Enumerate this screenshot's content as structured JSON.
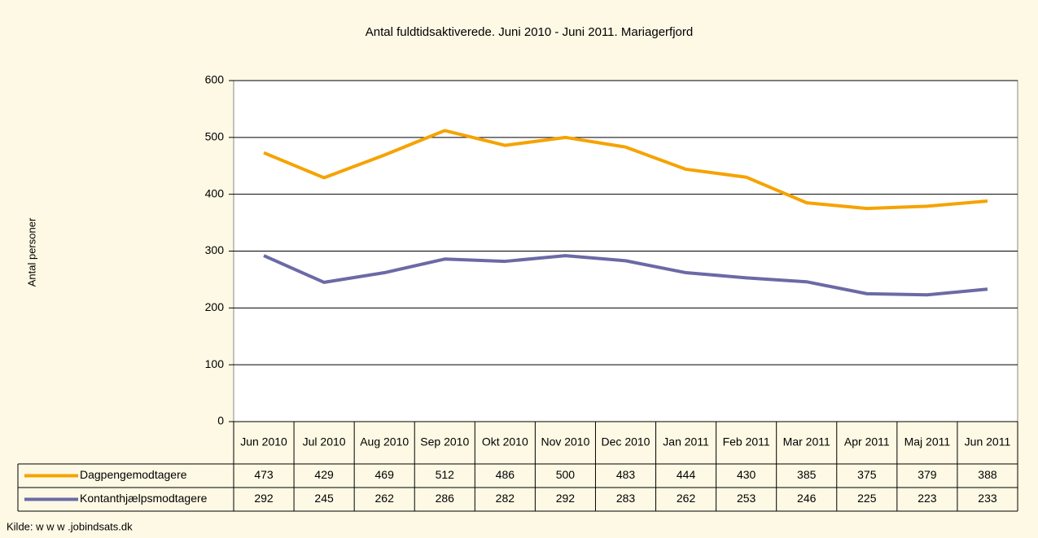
{
  "chart_data": {
    "type": "line",
    "title": "Antal fuldtidsaktiverede. Juni 2010 - Juni 2011. Mariagerfjord",
    "y_label": "Antal personer",
    "source": "Kilde: w w w .jobindsats.dk",
    "categories": [
      "Jun 2010",
      "Jul 2010",
      "Aug 2010",
      "Sep 2010",
      "Okt 2010",
      "Nov 2010",
      "Dec 2010",
      "Jan 2011",
      "Feb 2011",
      "Mar 2011",
      "Apr 2011",
      "Maj 2011",
      "Jun 2011"
    ],
    "series": [
      {
        "name": "Dagpengemodtagere",
        "color": "#f5a300",
        "values": [
          473,
          429,
          469,
          512,
          486,
          500,
          483,
          444,
          430,
          385,
          375,
          379,
          388
        ]
      },
      {
        "name": "Kontanthjælpsmodtagere",
        "color": "#6b6aa6",
        "values": [
          292,
          245,
          262,
          286,
          282,
          292,
          283,
          262,
          253,
          246,
          225,
          223,
          233
        ]
      }
    ],
    "ylim": [
      0,
      600
    ],
    "yticks": [
      0,
      100,
      200,
      300,
      400,
      500,
      600
    ],
    "grid": true
  }
}
